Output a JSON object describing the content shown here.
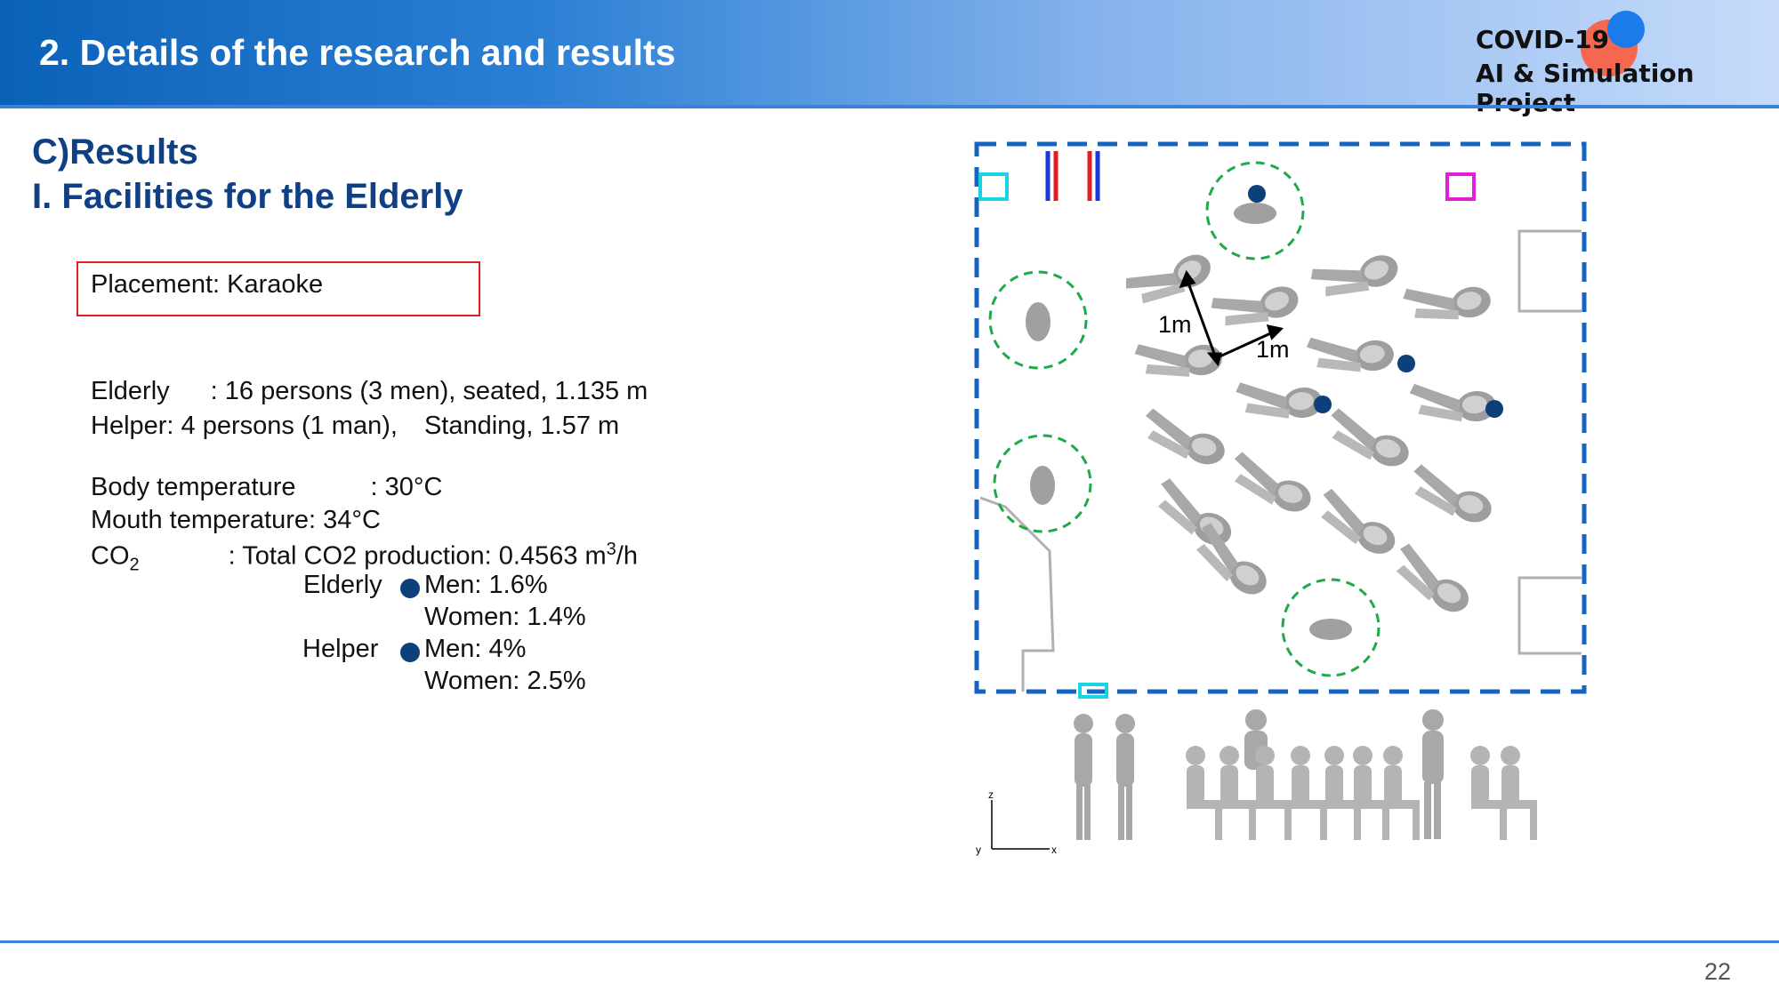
{
  "header": {
    "title": "2. Details of the research and results",
    "logo_line1": "COVID-19",
    "logo_line2": "AI & Simulation Project"
  },
  "section": {
    "line1": "C)Results",
    "line2": "I. Facilities for the Elderly"
  },
  "placement": "Placement: Karaoke",
  "info": {
    "elderly_label": "Elderly",
    "elderly_value": ": 16 persons (3 men), seated, 1.135 m",
    "helper_line": "Helper: 4 persons (1 man),",
    "helper_standing": "Standing, 1.57 m",
    "body_temp_label": "Body temperature",
    "body_temp_value": ": 30°C",
    "mouth_temp": "Mouth temperature: 34°C",
    "co2_label": "CO",
    "co2_sub": "2",
    "co2_value": ": Total CO2 production: 0.4563 m",
    "co2_sup": "3",
    "co2_unit": "/h",
    "elderly_rates_label": "Elderly",
    "elderly_men": "Men: 1.6%",
    "elderly_women": "Women: 1.4%",
    "helper_rates_label": "Helper",
    "helper_men": "Men: 4%",
    "helper_women": "Women: 2.5%"
  },
  "figure": {
    "distance_label_1": "1m",
    "distance_label_2": "1m",
    "axis_z": "z",
    "axis_x": "x",
    "axis_y": "y",
    "colors": {
      "room_border": "#1565c0",
      "circle": "#1faa4a",
      "marker": "#0d3f7a",
      "vent_red": "#e02020",
      "vent_blue": "#1a35d8",
      "cyan_box": "#18d4e0",
      "magenta_box": "#e020d8"
    }
  },
  "page_number": "22"
}
